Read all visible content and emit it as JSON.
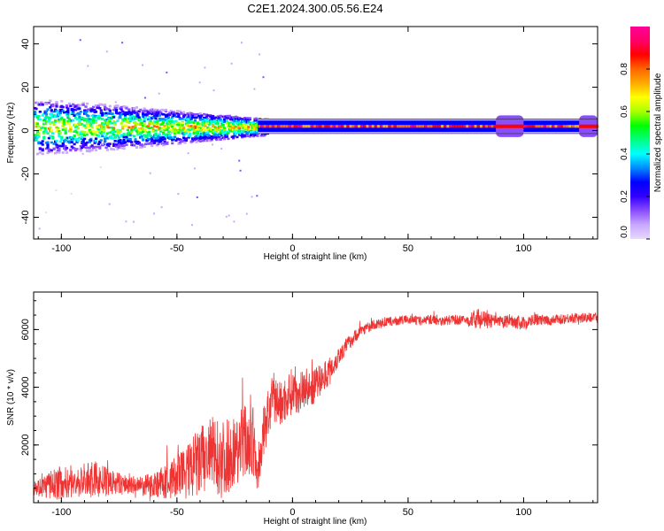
{
  "title": "C2E1.2024.300.05.56.E24",
  "chart_data": [
    {
      "type": "heatmap",
      "xlabel": "Height of straight line (km)",
      "ylabel": "Frequency (Hz)",
      "xlim": [
        -112,
        132
      ],
      "ylim": [
        -50,
        48
      ],
      "xticks": [
        -100,
        -50,
        0,
        50,
        100
      ],
      "yticks": [
        -40,
        -20,
        0,
        20,
        40
      ],
      "colorbar": {
        "label": "Normalized spectral amplitude",
        "range": [
          0.0,
          1.0
        ],
        "ticks": [
          0.0,
          0.2,
          0.4,
          0.6,
          0.8
        ],
        "tick_labels": [
          "0.0",
          "0.2",
          "0.4",
          "0.6",
          "0.8"
        ],
        "colors": [
          "#e8d8ff",
          "#c8a8ff",
          "#8a4dff",
          "#3300ff",
          "#0000ff",
          "#0088ff",
          "#00ffff",
          "#00ff80",
          "#00ff00",
          "#aaff00",
          "#ffff00",
          "#ffaa00",
          "#ff6600",
          "#ff0000",
          "#ff0066",
          "#ff0099"
        ]
      },
      "ridge": {
        "centre_frequency_hz": 2,
        "narrowband_from_km": -15
      }
    },
    {
      "type": "line",
      "xlabel": "Height of straight line (km)",
      "ylabel": "SNR (10 * v/v)",
      "xlim": [
        -112,
        132
      ],
      "ylim": [
        0,
        7300
      ],
      "xticks": [
        -100,
        -50,
        0,
        50,
        100
      ],
      "yticks": [
        2000,
        4000,
        6000
      ],
      "series": [
        {
          "color": "#ee3333",
          "x": [
            -112,
            -105,
            -100,
            -95,
            -90,
            -85,
            -80,
            -75,
            -70,
            -65,
            -60,
            -55,
            -50,
            -45,
            -40,
            -35,
            -30,
            -25,
            -20,
            -17,
            -15,
            -12,
            -10,
            -8,
            -5,
            -2,
            0,
            3,
            5,
            8,
            10,
            13,
            15,
            18,
            20,
            25,
            30,
            35,
            40,
            45,
            50,
            55,
            60,
            65,
            70,
            75,
            80,
            85,
            90,
            95,
            100,
            105,
            110,
            115,
            120,
            125,
            132
          ],
          "y": [
            500,
            600,
            700,
            650,
            750,
            800,
            700,
            650,
            600,
            550,
            650,
            700,
            900,
            1100,
            1400,
            1700,
            1500,
            1800,
            2200,
            2000,
            900,
            2700,
            3200,
            3600,
            3400,
            3700,
            3900,
            3800,
            4000,
            3900,
            4100,
            4300,
            4500,
            4800,
            5100,
            5600,
            6000,
            6150,
            6250,
            6300,
            6350,
            6300,
            6350,
            6300,
            6350,
            6300,
            6400,
            6300,
            6250,
            6300,
            6200,
            6350,
            6300,
            6350,
            6400,
            6400,
            6450
          ],
          "noise": [
            250,
            500,
            600,
            500,
            600,
            650,
            500,
            400,
            350,
            350,
            450,
            600,
            800,
            1000,
            1300,
            1300,
            1400,
            1200,
            1400,
            1300,
            500,
            1000,
            900,
            900,
            800,
            800,
            800,
            700,
            700,
            600,
            600,
            550,
            500,
            400,
            350,
            250,
            200,
            180,
            160,
            160,
            160,
            160,
            170,
            170,
            170,
            180,
            350,
            250,
            220,
            220,
            250,
            200,
            180,
            180,
            180,
            170,
            170
          ]
        }
      ]
    }
  ]
}
